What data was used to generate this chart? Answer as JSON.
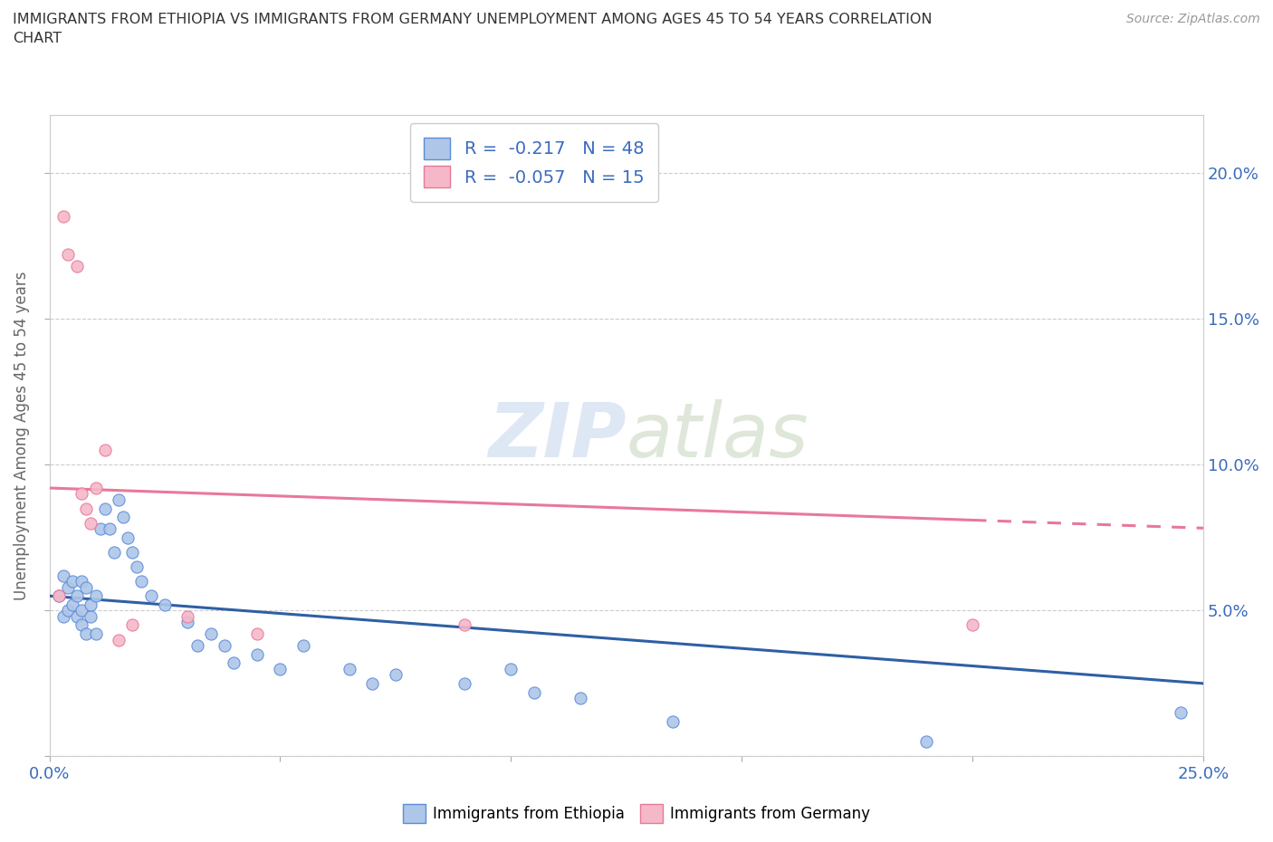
{
  "title": "IMMIGRANTS FROM ETHIOPIA VS IMMIGRANTS FROM GERMANY UNEMPLOYMENT AMONG AGES 45 TO 54 YEARS CORRELATION\nCHART",
  "source": "Source: ZipAtlas.com",
  "ylabel": "Unemployment Among Ages 45 to 54 years",
  "xlim": [
    0.0,
    0.25
  ],
  "ylim": [
    0.0,
    0.22
  ],
  "xticks": [
    0.0,
    0.05,
    0.1,
    0.15,
    0.2,
    0.25
  ],
  "yticks": [
    0.0,
    0.05,
    0.1,
    0.15,
    0.2
  ],
  "right_ytick_labels": [
    "5.0%",
    "10.0%",
    "15.0%",
    "20.0%"
  ],
  "right_yticks": [
    0.05,
    0.1,
    0.15,
    0.2
  ],
  "ethiopia_color": "#aec6e8",
  "ethiopia_edge_color": "#5b8dd9",
  "germany_color": "#f5b8c8",
  "germany_edge_color": "#e8789a",
  "ethiopia_line_color": "#2f5fa5",
  "germany_line_color": "#e8789a",
  "ethiopia_R": -0.217,
  "ethiopia_N": 48,
  "germany_R": -0.057,
  "germany_N": 15,
  "watermark": "ZIPatlas",
  "ethiopia_x": [
    0.002,
    0.003,
    0.003,
    0.004,
    0.004,
    0.005,
    0.005,
    0.006,
    0.006,
    0.007,
    0.007,
    0.007,
    0.008,
    0.008,
    0.009,
    0.009,
    0.01,
    0.01,
    0.011,
    0.012,
    0.013,
    0.014,
    0.015,
    0.016,
    0.017,
    0.018,
    0.019,
    0.02,
    0.022,
    0.025,
    0.03,
    0.032,
    0.035,
    0.038,
    0.04,
    0.045,
    0.05,
    0.055,
    0.065,
    0.07,
    0.075,
    0.09,
    0.1,
    0.105,
    0.115,
    0.135,
    0.19,
    0.245
  ],
  "ethiopia_y": [
    0.055,
    0.062,
    0.048,
    0.05,
    0.058,
    0.052,
    0.06,
    0.048,
    0.055,
    0.05,
    0.045,
    0.06,
    0.042,
    0.058,
    0.048,
    0.052,
    0.042,
    0.055,
    0.078,
    0.085,
    0.078,
    0.07,
    0.088,
    0.082,
    0.075,
    0.07,
    0.065,
    0.06,
    0.055,
    0.052,
    0.046,
    0.038,
    0.042,
    0.038,
    0.032,
    0.035,
    0.03,
    0.038,
    0.03,
    0.025,
    0.028,
    0.025,
    0.03,
    0.022,
    0.02,
    0.012,
    0.005,
    0.015
  ],
  "germany_x": [
    0.002,
    0.003,
    0.004,
    0.006,
    0.007,
    0.008,
    0.009,
    0.01,
    0.012,
    0.015,
    0.018,
    0.03,
    0.045,
    0.09,
    0.2
  ],
  "germany_y": [
    0.055,
    0.185,
    0.172,
    0.168,
    0.09,
    0.085,
    0.08,
    0.092,
    0.105,
    0.04,
    0.045,
    0.048,
    0.042,
    0.045,
    0.045
  ]
}
